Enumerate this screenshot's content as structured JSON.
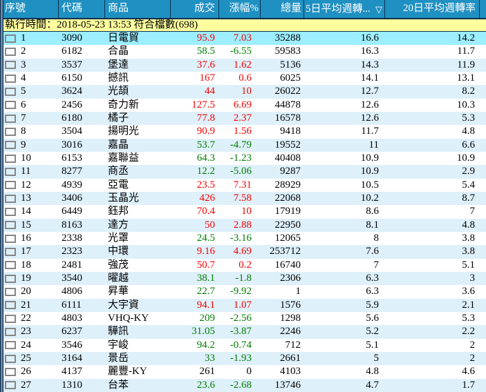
{
  "colors": {
    "header_bg": "#1f90c2",
    "header_text": "#ffffff",
    "separator": "#0d3050",
    "status_bar_bg": "#ffff9e",
    "row_alt_bg": "#def0fa",
    "row_bg": "#ffffff",
    "selected_row_bg": "#9deeff",
    "up": "#f20000",
    "down": "#007d00",
    "flat": "#000000"
  },
  "status_bar": {
    "text": "執行時間：2018-05-23 13:53 符合檔數(698)",
    "executed_at": "2018-05-23 13:53",
    "matched_count": 698
  },
  "table": {
    "columns": [
      {
        "id": "seq",
        "label": "序號"
      },
      {
        "id": "code",
        "label": "代碼"
      },
      {
        "id": "name",
        "label": "商品"
      },
      {
        "id": "price",
        "label": "成交"
      },
      {
        "id": "change",
        "label": "漲幅%"
      },
      {
        "id": "volume",
        "label": "總量"
      },
      {
        "id": "avg5",
        "label": "5日平均週轉...",
        "sort": "descending",
        "sort_icon": "▽"
      },
      {
        "id": "avg20",
        "label": "20日平均週轉率"
      }
    ],
    "rows": [
      {
        "seq": "1",
        "code": "3090",
        "name": "日電貿",
        "price": "95.9",
        "change": "7.03",
        "volume": "35288",
        "avg5": "16.6",
        "avg20": "14.2",
        "trend": "up",
        "selected": true
      },
      {
        "seq": "2",
        "code": "6182",
        "name": "合晶",
        "price": "58.5",
        "change": "-6.55",
        "volume": "59583",
        "avg5": "16.3",
        "avg20": "11.7",
        "trend": "down"
      },
      {
        "seq": "3",
        "code": "3537",
        "name": "堡達",
        "price": "37.6",
        "change": "1.62",
        "volume": "5136",
        "avg5": "14.3",
        "avg20": "11.9",
        "trend": "up"
      },
      {
        "seq": "4",
        "code": "6150",
        "name": "撼訊",
        "price": "167",
        "change": "0.6",
        "volume": "6025",
        "avg5": "14.1",
        "avg20": "13.1",
        "trend": "up"
      },
      {
        "seq": "5",
        "code": "3624",
        "name": "光頡",
        "price": "44",
        "change": "10",
        "volume": "26022",
        "avg5": "12.7",
        "avg20": "8.2",
        "trend": "up"
      },
      {
        "seq": "6",
        "code": "2456",
        "name": "奇力新",
        "price": "127.5",
        "change": "6.69",
        "volume": "44878",
        "avg5": "12.6",
        "avg20": "10.3",
        "trend": "up"
      },
      {
        "seq": "7",
        "code": "6180",
        "name": "橘子",
        "price": "77.8",
        "change": "2.37",
        "volume": "16578",
        "avg5": "12.6",
        "avg20": "5.3",
        "trend": "up"
      },
      {
        "seq": "8",
        "code": "3504",
        "name": "揚明光",
        "price": "90.9",
        "change": "1.56",
        "volume": "9418",
        "avg5": "11.7",
        "avg20": "4.8",
        "trend": "up"
      },
      {
        "seq": "9",
        "code": "3016",
        "name": "嘉晶",
        "price": "53.7",
        "change": "-4.79",
        "volume": "19552",
        "avg5": "11",
        "avg20": "6.6",
        "trend": "down"
      },
      {
        "seq": "10",
        "code": "6153",
        "name": "嘉聯益",
        "price": "64.3",
        "change": "-1.23",
        "volume": "40408",
        "avg5": "10.9",
        "avg20": "10.9",
        "trend": "down"
      },
      {
        "seq": "11",
        "code": "8277",
        "name": "商丞",
        "price": "12.2",
        "change": "-5.06",
        "volume": "9287",
        "avg5": "10.9",
        "avg20": "2.9",
        "trend": "down"
      },
      {
        "seq": "12",
        "code": "4939",
        "name": "亞電",
        "price": "23.5",
        "change": "7.31",
        "volume": "28929",
        "avg5": "10.5",
        "avg20": "5.4",
        "trend": "up"
      },
      {
        "seq": "13",
        "code": "3406",
        "name": "玉晶光",
        "price": "426",
        "change": "7.58",
        "volume": "22068",
        "avg5": "10.2",
        "avg20": "8.7",
        "trend": "up"
      },
      {
        "seq": "14",
        "code": "6449",
        "name": "鈺邦",
        "price": "70.4",
        "change": "10",
        "volume": "17919",
        "avg5": "8.6",
        "avg20": "7",
        "trend": "up"
      },
      {
        "seq": "15",
        "code": "8163",
        "name": "達方",
        "price": "50",
        "change": "2.88",
        "volume": "22950",
        "avg5": "8.1",
        "avg20": "4.8",
        "trend": "up"
      },
      {
        "seq": "16",
        "code": "2338",
        "name": "光罩",
        "price": "24.5",
        "change": "-3.16",
        "volume": "12065",
        "avg5": "8",
        "avg20": "3.8",
        "trend": "down"
      },
      {
        "seq": "17",
        "code": "2323",
        "name": "中環",
        "price": "9.16",
        "change": "4.69",
        "volume": "253712",
        "avg5": "7.6",
        "avg20": "3.8",
        "trend": "up"
      },
      {
        "seq": "18",
        "code": "2481",
        "name": "強茂",
        "price": "50.7",
        "change": "0.2",
        "volume": "16740",
        "avg5": "7",
        "avg20": "5.1",
        "trend": "up"
      },
      {
        "seq": "19",
        "code": "3540",
        "name": "曜越",
        "price": "38.1",
        "change": "-1.8",
        "volume": "2306",
        "avg5": "6.3",
        "avg20": "3",
        "trend": "down"
      },
      {
        "seq": "20",
        "code": "4806",
        "name": "昇華",
        "price": "22.7",
        "change": "-9.92",
        "volume": "1",
        "avg5": "6.3",
        "avg20": "3.6",
        "trend": "down"
      },
      {
        "seq": "21",
        "code": "6111",
        "name": "大宇資",
        "price": "94.1",
        "change": "1.07",
        "volume": "1576",
        "avg5": "5.9",
        "avg20": "2.1",
        "trend": "up"
      },
      {
        "seq": "22",
        "code": "4803",
        "name": "VHQ-KY",
        "price": "209",
        "change": "-2.56",
        "volume": "1298",
        "avg5": "5.6",
        "avg20": "5.3",
        "trend": "down"
      },
      {
        "seq": "23",
        "code": "6237",
        "name": "驊訊",
        "price": "31.05",
        "change": "-3.87",
        "volume": "2246",
        "avg5": "5.2",
        "avg20": "2.2",
        "trend": "down"
      },
      {
        "seq": "24",
        "code": "3546",
        "name": "宇峻",
        "price": "94.2",
        "change": "-0.74",
        "volume": "712",
        "avg5": "5.1",
        "avg20": "2",
        "trend": "down"
      },
      {
        "seq": "25",
        "code": "3164",
        "name": "景岳",
        "price": "33",
        "change": "-1.93",
        "volume": "2661",
        "avg5": "5",
        "avg20": "2",
        "trend": "down"
      },
      {
        "seq": "26",
        "code": "4137",
        "name": "麗豐-KY",
        "price": "261",
        "change": "0",
        "volume": "4103",
        "avg5": "4.8",
        "avg20": "4.6",
        "trend": "flat"
      },
      {
        "seq": "27",
        "code": "1310",
        "name": "台苯",
        "price": "23.6",
        "change": "-2.68",
        "volume": "13746",
        "avg5": "4.7",
        "avg20": "1.7",
        "trend": "down"
      }
    ]
  }
}
